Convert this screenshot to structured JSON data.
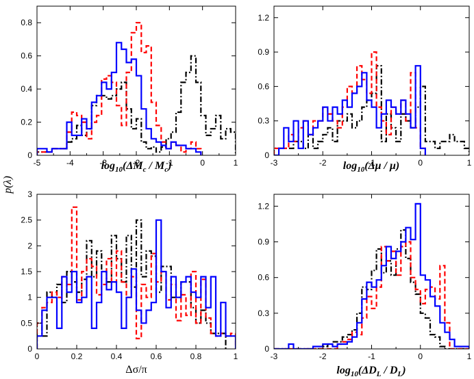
{
  "figure": {
    "ylabel": "p(λ)",
    "series_styles": [
      {
        "name": "black dash-dot",
        "color": "#000000",
        "dash": "8,3,2,3"
      },
      {
        "name": "red dashed",
        "color": "#ff0000",
        "dash": "7,4"
      },
      {
        "name": "blue solid",
        "color": "#0000ff",
        "dash": ""
      }
    ]
  },
  "chart_data": [
    {
      "type": "histogram",
      "id": "mc",
      "xlabel": "log10(ΔMc / Mc)",
      "xlim": [
        -5,
        1
      ],
      "ylim": [
        0,
        0.9
      ],
      "xticks": [
        -5,
        -4,
        -3,
        -2,
        -1,
        0,
        1
      ],
      "xtick_labels": [
        "-5",
        "-4",
        "-3",
        "-2",
        "-1",
        "0",
        "1"
      ],
      "yticks": [
        0,
        0.2,
        0.4,
        0.6,
        0.8
      ],
      "ytick_labels": [
        "0",
        "0.2",
        "0.4",
        "0.6",
        "0.8"
      ],
      "bin_start": -5,
      "bin_width": 0.15,
      "series": [
        {
          "name": "black dash-dot",
          "values": [
            0.02,
            0.02,
            0.02,
            0.04,
            0.04,
            0.04,
            0.08,
            0.1,
            0.18,
            0.12,
            0.16,
            0.3,
            0.36,
            0.36,
            0.34,
            0.36,
            0.4,
            0.44,
            0.28,
            0.16,
            0.22,
            0.08,
            0.04,
            0.05,
            0.02,
            0.05,
            0.1,
            0.14,
            0.26,
            0.44,
            0.5,
            0.6,
            0.44,
            0.24,
            0.12,
            0.16,
            0.24,
            0.1,
            0.16,
            0.14
          ]
        },
        {
          "name": "red dashed",
          "values": [
            0.02,
            0.02,
            0.02,
            0.04,
            0.04,
            0.04,
            0.14,
            0.26,
            0.24,
            0.2,
            0.1,
            0.2,
            0.24,
            0.46,
            0.48,
            0.44,
            0.3,
            0.18,
            0.5,
            0.74,
            0.8,
            0.62,
            0.66,
            0.32,
            0.18,
            0.08,
            0.04,
            0.08,
            0.06,
            0.02,
            0.04,
            0.08,
            0.04
          ]
        },
        {
          "name": "blue solid",
          "values": [
            0.04,
            0.04,
            0.02,
            0.04,
            0.04,
            0.04,
            0.2,
            0.12,
            0.12,
            0.22,
            0.16,
            0.32,
            0.36,
            0.44,
            0.4,
            0.5,
            0.68,
            0.64,
            0.56,
            0.58,
            0.48,
            0.28,
            0.16,
            0.1,
            0.08,
            0.06,
            0.04,
            0.08,
            0.06,
            0.06,
            0.04,
            0.04,
            0.02
          ]
        }
      ]
    },
    {
      "type": "histogram",
      "id": "mu",
      "xlabel": "log10(Δμ / μ)",
      "xlim": [
        -3,
        1
      ],
      "ylim": [
        0,
        1.3
      ],
      "xticks": [
        -3,
        -2,
        -1,
        0,
        1
      ],
      "xtick_labels": [
        "-3",
        "-2",
        "-1",
        "0",
        "1"
      ],
      "yticks": [
        0,
        0.3,
        0.6,
        0.9,
        1.2
      ],
      "ytick_labels": [
        "0",
        "0.3",
        "0.6",
        "0.9",
        "1.2"
      ],
      "bin_start": -3,
      "bin_width": 0.1,
      "series": [
        {
          "name": "black dash-dot",
          "values": [
            0.06,
            0.06,
            0.06,
            0.06,
            0.12,
            0.12,
            0.06,
            0.18,
            0.06,
            0.12,
            0.18,
            0.24,
            0.12,
            0.3,
            0.3,
            0.36,
            0.24,
            0.3,
            0.42,
            0.48,
            0.54,
            0.78,
            0.12,
            0.36,
            0.24,
            0.12,
            0.36,
            0.3,
            0.24,
            0.42,
            0.6,
            0.12,
            0.12,
            0.06,
            0.12,
            0.12,
            0.18,
            0.12,
            0.12,
            0.06
          ]
        },
        {
          "name": "red dashed",
          "values": [
            0.06,
            0.06,
            0.06,
            0.18,
            0.12,
            0.24,
            0.3,
            0.18,
            0.3,
            0.3,
            0.42,
            0.36,
            0.3,
            0.24,
            0.42,
            0.6,
            0.54,
            0.78,
            0.66,
            0.54,
            0.9,
            0.42,
            0.3,
            0.18,
            0.42,
            0.36,
            0.48,
            0.3,
            0.72,
            0.24,
            0.06
          ]
        },
        {
          "name": "blue solid",
          "values": [
            0,
            0.06,
            0.24,
            0.12,
            0.3,
            0.06,
            0.3,
            0.18,
            0.24,
            0.3,
            0.42,
            0.3,
            0.42,
            0.36,
            0.48,
            0.42,
            0.54,
            0.6,
            0.72,
            0.48,
            0.42,
            0.24,
            0.36,
            0.48,
            0.42,
            0.36,
            0.48,
            0.36,
            0.24,
            0.78,
            0.06
          ]
        }
      ]
    },
    {
      "type": "histogram",
      "id": "sigma",
      "xlabel": "Δσ/π",
      "xlim": [
        0,
        1
      ],
      "ylim": [
        0,
        3
      ],
      "xticks": [
        0,
        0.2,
        0.4,
        0.6,
        0.8,
        1
      ],
      "xtick_labels": [
        "0",
        "0.2",
        "0.4",
        "0.6",
        "0.8",
        "1"
      ],
      "yticks": [
        0,
        0.5,
        1,
        1.5,
        2,
        2.5,
        3
      ],
      "ytick_labels": [
        "0",
        "0.5",
        "1",
        "1.5",
        "2",
        "2.5",
        "3"
      ],
      "bin_start": 0,
      "bin_width": 0.025,
      "series": [
        {
          "name": "black dash-dot",
          "values": [
            0.5,
            0.25,
            1.1,
            1.0,
            1.25,
            0.9,
            1.5,
            1.3,
            1.1,
            1.35,
            2.1,
            1.4,
            1.9,
            1.5,
            1.3,
            2.2,
            1.75,
            1.3,
            2.2,
            1.2,
            2.5,
            1.4,
            1.9,
            1.8,
            1.1,
            1.6,
            1.6,
            1.0,
            1.0,
            1.3,
            1.3,
            0.8,
            0.5,
            0.75,
            0.5,
            0.3,
            0.3,
            0.3
          ]
        },
        {
          "name": "red dashed",
          "values": [
            0.5,
            0.8,
            0.9,
            1.1,
            1.0,
            1.4,
            1.25,
            2.75,
            0.95,
            1.5,
            1.75,
            1.6,
            1.05,
            1.25,
            1.75,
            1.3,
            1.9,
            1.3,
            1.0,
            1.4,
            0.2,
            1.25,
            1.0,
            1.85,
            1.3,
            1.5,
            0.95,
            1.25,
            0.55,
            1.05,
            0.65,
            1.5,
            0.5,
            1.35,
            0.6,
            0.3,
            0.25,
            0.3,
            0.25,
            0.3
          ]
        },
        {
          "name": "blue solid",
          "values": [
            0.25,
            0.75,
            1.0,
            1.0,
            0.4,
            1.4,
            1.1,
            1.5,
            0.9,
            1.0,
            1.4,
            0.4,
            0.9,
            1.5,
            1.15,
            1.3,
            1.1,
            0.4,
            1.0,
            1.55,
            0.75,
            0.5,
            0.75,
            0.9,
            2.5,
            1.5,
            0.8,
            1.4,
            1.0,
            1.3,
            1.4,
            1.1,
            1.0,
            1.4,
            0.8,
            1.4,
            0.25,
            0.9,
            0.25,
            0.25
          ]
        }
      ]
    },
    {
      "type": "histogram",
      "id": "dl",
      "xlabel": "log10(ΔDL / DL)",
      "xlim": [
        -3,
        1
      ],
      "ylim": [
        0,
        1.3
      ],
      "xticks": [
        -3,
        -2,
        -1,
        0,
        1
      ],
      "xtick_labels": [
        "-3",
        "-2",
        "-1",
        "0",
        "1"
      ],
      "yticks": [
        0,
        0.3,
        0.6,
        0.9,
        1.2
      ],
      "ytick_labels": [
        "0",
        "0.3",
        "0.6",
        "0.9",
        "1.2"
      ],
      "bin_start": -3,
      "bin_width": 0.1,
      "series": [
        {
          "name": "black dash-dot",
          "values": [
            0,
            0,
            0,
            0,
            0,
            0,
            0,
            0,
            0,
            0,
            0.02,
            0.04,
            0.06,
            0.06,
            0.1,
            0.12,
            0.16,
            0.3,
            0.52,
            0.5,
            0.66,
            0.84,
            0.64,
            0.74,
            0.62,
            0.84,
            1.0,
            0.76,
            0.56,
            0.46,
            0.3,
            0.26,
            0.12,
            0.1,
            0.02,
            0,
            0,
            0,
            0,
            0
          ]
        },
        {
          "name": "red dashed",
          "values": [
            0,
            0,
            0,
            0,
            0,
            0,
            0,
            0,
            0,
            0,
            0,
            0,
            0,
            0.04,
            0.06,
            0.08,
            0.14,
            0.12,
            0.26,
            0.44,
            0.34,
            0.52,
            0.86,
            0.74,
            0.82,
            0.62,
            0.86,
            0.9,
            0.6,
            0.5,
            0.38,
            0.5,
            0.52,
            0.42,
            0.7,
            0.22,
            0,
            0,
            0,
            0
          ]
        },
        {
          "name": "blue solid",
          "values": [
            0,
            0,
            0,
            0.04,
            0,
            0,
            0,
            0,
            0.02,
            0.02,
            0.04,
            0.04,
            0.02,
            0.04,
            0.04,
            0.06,
            0.1,
            0.22,
            0.42,
            0.56,
            0.52,
            0.58,
            0.7,
            0.86,
            0.76,
            0.82,
            0.9,
            1.02,
            0.92,
            1.22,
            0.62,
            0.58,
            0.44,
            0.36,
            0.22,
            0.14,
            0.08,
            0.02,
            0.02,
            0.02
          ]
        }
      ]
    }
  ]
}
